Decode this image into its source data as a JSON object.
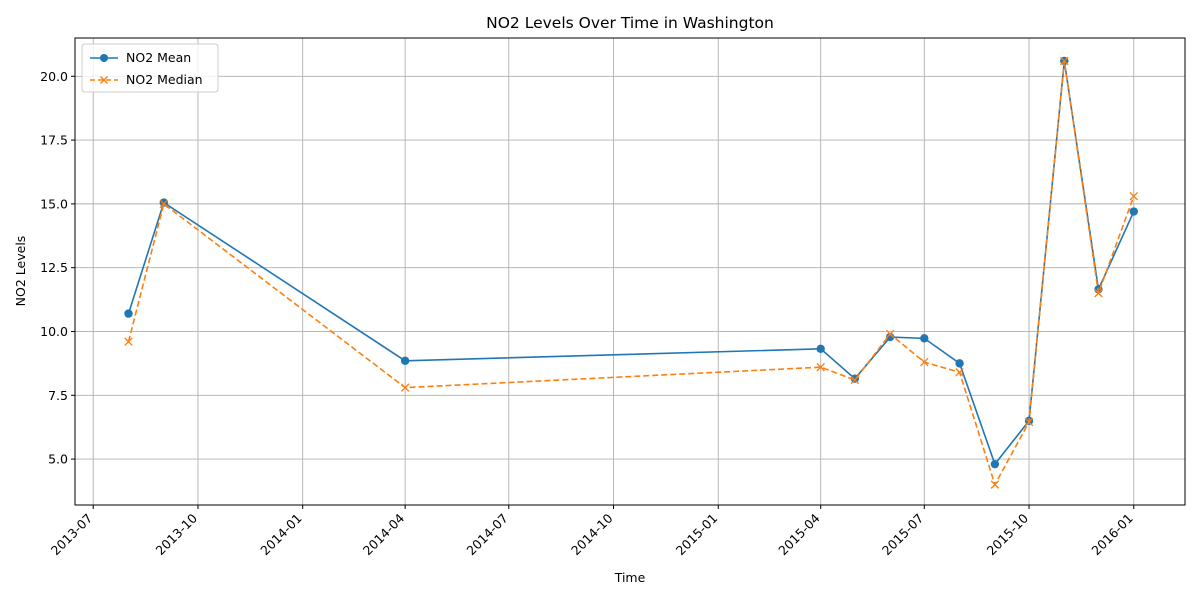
{
  "chart_data": {
    "type": "line",
    "title": "NO2 Levels Over Time in Washington",
    "xlabel": "Time",
    "ylabel": "NO2 Levels",
    "x": [
      "2013-08-01",
      "2013-09-01",
      "2014-04-01",
      "2015-04-01",
      "2015-05-01",
      "2015-06-01",
      "2015-07-01",
      "2015-08-01",
      "2015-09-01",
      "2015-10-01",
      "2015-11-01",
      "2015-12-01",
      "2016-01-01"
    ],
    "series": [
      {
        "name": "NO2 Mean",
        "color": "#1f77b4",
        "marker": "circle",
        "linestyle": "solid",
        "values": [
          10.7,
          15.05,
          8.85,
          9.32,
          8.15,
          9.78,
          9.73,
          8.75,
          4.8,
          6.5,
          20.6,
          11.65,
          14.7
        ]
      },
      {
        "name": "NO2 Median",
        "color": "#ff7f0e",
        "marker": "x",
        "linestyle": "dashed",
        "values": [
          9.6,
          15.0,
          7.8,
          8.6,
          8.1,
          9.9,
          8.8,
          8.4,
          4.0,
          6.45,
          20.6,
          11.5,
          15.3
        ]
      }
    ],
    "xlim": [
      "2013-06-15",
      "2016-02-15"
    ],
    "ylim": [
      3.2,
      21.5
    ],
    "x_ticks": [
      "2013-07",
      "2013-10",
      "2014-01",
      "2014-04",
      "2014-07",
      "2014-10",
      "2015-01",
      "2015-04",
      "2015-07",
      "2015-10",
      "2016-01"
    ],
    "y_ticks": [
      "5.0",
      "7.5",
      "10.0",
      "12.5",
      "15.0",
      "17.5",
      "20.0"
    ],
    "grid": true,
    "legend_position": "upper left"
  }
}
